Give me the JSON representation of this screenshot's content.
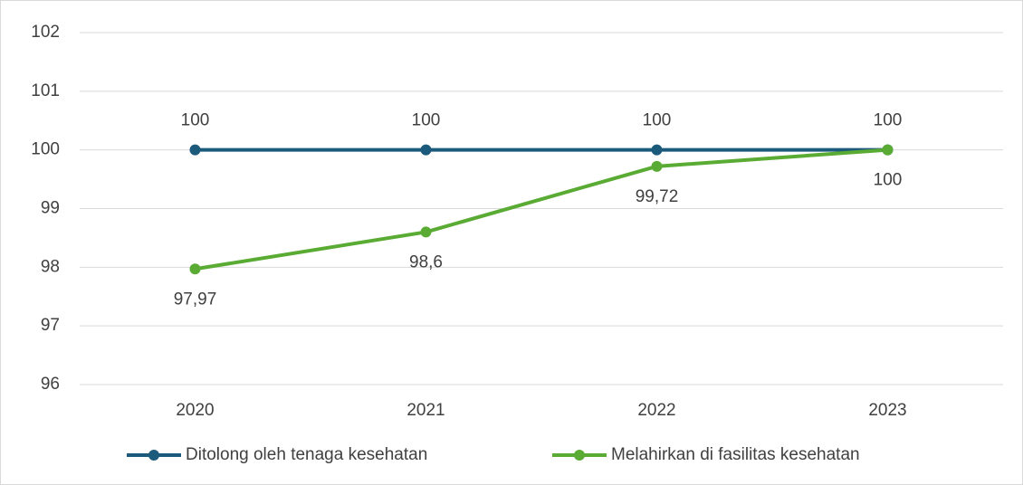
{
  "chart_data": {
    "type": "line",
    "categories": [
      "2020",
      "2021",
      "2022",
      "2023"
    ],
    "series": [
      {
        "name": "Ditolong oleh tenaga kesehatan",
        "color": "#1c5a7c",
        "values": [
          100,
          100,
          100,
          100
        ]
      },
      {
        "name": "Melahirkan di fasilitas kesehatan",
        "color": "#5aab34",
        "values": [
          97.97,
          98.6,
          99.72,
          100
        ],
        "value_labels": [
          "97,97",
          "98,6",
          "99,72",
          "100"
        ]
      }
    ],
    "ylim": [
      96,
      102
    ],
    "yticks": [
      96,
      97,
      98,
      99,
      100,
      101,
      102
    ],
    "grid": true
  }
}
